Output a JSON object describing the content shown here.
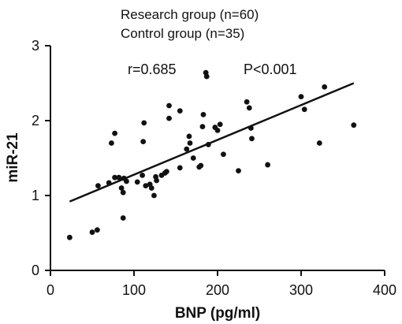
{
  "chart_data": {
    "type": "scatter",
    "legend": [
      "Research group (n=60)",
      "Control group (n=35)"
    ],
    "annotations": {
      "r": "r=0.685",
      "p": "P<0.001"
    },
    "xlabel": "BNP (pg/ml)",
    "ylabel": "miR-21",
    "xlim": [
      0,
      400
    ],
    "ylim": [
      0,
      3
    ],
    "xticks": [
      "0",
      "100",
      "200",
      "300",
      "400"
    ],
    "yticks": [
      "0",
      "1",
      "2",
      "3"
    ],
    "grid": false,
    "point_color": "#111111",
    "trendline": {
      "x": [
        23,
        363
      ],
      "y": [
        0.92,
        2.5
      ]
    },
    "points": [
      [
        23,
        0.44
      ],
      [
        50,
        0.51
      ],
      [
        56,
        0.54
      ],
      [
        57,
        1.13
      ],
      [
        70,
        1.17
      ],
      [
        73,
        1.7
      ],
      [
        77,
        1.83
      ],
      [
        77,
        1.24
      ],
      [
        82,
        1.24
      ],
      [
        85,
        1.1
      ],
      [
        87,
        1.04
      ],
      [
        87,
        0.7
      ],
      [
        88,
        1.23
      ],
      [
        91,
        1.19
      ],
      [
        104,
        1.18
      ],
      [
        110,
        1.27
      ],
      [
        111,
        1.72
      ],
      [
        112,
        1.97
      ],
      [
        114,
        1.13
      ],
      [
        119,
        1.15
      ],
      [
        121,
        1.1
      ],
      [
        124,
        1.0
      ],
      [
        126,
        1.25
      ],
      [
        127,
        1.2
      ],
      [
        133,
        1.27
      ],
      [
        137,
        1.3
      ],
      [
        139,
        1.32
      ],
      [
        142,
        2.2
      ],
      [
        142,
        2.03
      ],
      [
        155,
        1.37
      ],
      [
        155,
        2.13
      ],
      [
        163,
        1.62
      ],
      [
        166,
        1.79
      ],
      [
        167,
        1.7
      ],
      [
        171,
        1.5
      ],
      [
        178,
        1.38
      ],
      [
        180,
        1.4
      ],
      [
        182,
        1.92
      ],
      [
        183,
        2.08
      ],
      [
        186,
        2.64
      ],
      [
        187,
        2.59
      ],
      [
        189,
        1.68
      ],
      [
        197,
        1.91
      ],
      [
        200,
        1.87
      ],
      [
        203,
        1.95
      ],
      [
        207,
        1.55
      ],
      [
        225,
        1.33
      ],
      [
        235,
        2.25
      ],
      [
        238,
        2.17
      ],
      [
        240,
        1.9
      ],
      [
        241,
        1.76
      ],
      [
        260,
        1.41
      ],
      [
        300,
        2.32
      ],
      [
        304,
        2.15
      ],
      [
        322,
        1.7
      ],
      [
        328,
        2.45
      ],
      [
        363,
        1.94
      ]
    ]
  }
}
